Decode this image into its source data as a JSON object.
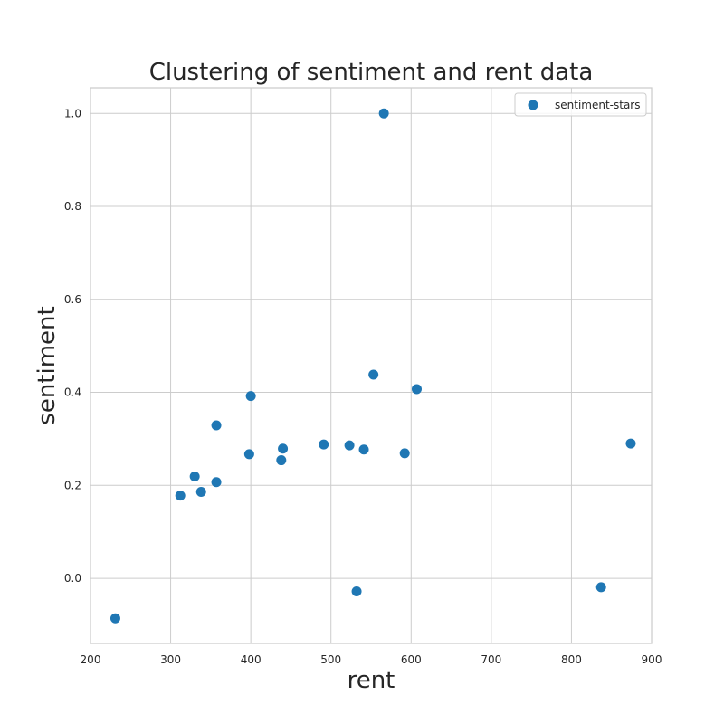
{
  "chart_data": {
    "type": "scatter",
    "title": "Clustering of sentiment and rent data",
    "xlabel": "rent",
    "ylabel": "sentiment",
    "xlim": [
      200,
      900
    ],
    "ylim": [
      -0.14,
      1.055
    ],
    "xticks": [
      200,
      300,
      400,
      500,
      600,
      700,
      800,
      900
    ],
    "yticks": [
      0.0,
      0.2,
      0.4,
      0.6,
      0.8,
      1.0
    ],
    "grid": true,
    "legend": {
      "placement": "top-right",
      "entries": [
        "sentiment-stars"
      ]
    },
    "series": [
      {
        "name": "sentiment-stars",
        "color": "#1f77b4",
        "points": [
          {
            "x": 231,
            "y": -0.086
          },
          {
            "x": 312,
            "y": 0.178
          },
          {
            "x": 330,
            "y": 0.219
          },
          {
            "x": 338,
            "y": 0.186
          },
          {
            "x": 357,
            "y": 0.207
          },
          {
            "x": 357,
            "y": 0.329
          },
          {
            "x": 398,
            "y": 0.267
          },
          {
            "x": 400,
            "y": 0.392
          },
          {
            "x": 438,
            "y": 0.254
          },
          {
            "x": 440,
            "y": 0.279
          },
          {
            "x": 491,
            "y": 0.288
          },
          {
            "x": 523,
            "y": 0.286
          },
          {
            "x": 532,
            "y": -0.028
          },
          {
            "x": 541,
            "y": 0.277
          },
          {
            "x": 553,
            "y": 0.438
          },
          {
            "x": 566,
            "y": 1.0
          },
          {
            "x": 592,
            "y": 0.269
          },
          {
            "x": 607,
            "y": 0.407
          },
          {
            "x": 837,
            "y": -0.019
          },
          {
            "x": 874,
            "y": 0.29
          }
        ]
      }
    ]
  }
}
